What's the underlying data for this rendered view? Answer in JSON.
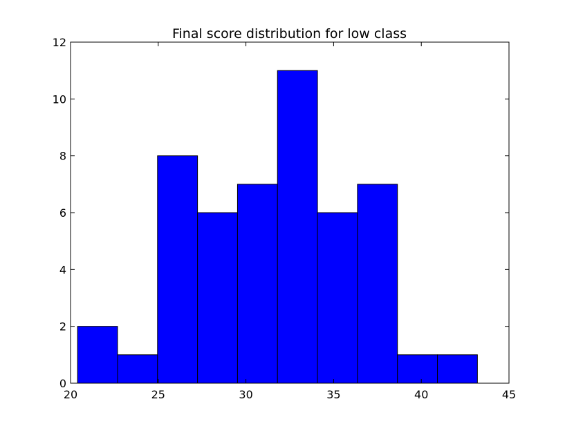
{
  "chart_data": {
    "type": "bar",
    "title": "Final score distribution for low class",
    "xlabel": "",
    "ylabel": "",
    "xlim": [
      20,
      45
    ],
    "ylim": [
      0,
      12
    ],
    "x_ticks": [
      20,
      25,
      30,
      35,
      40,
      45
    ],
    "y_ticks": [
      0,
      2,
      4,
      6,
      8,
      10,
      12
    ],
    "bin_edges": [
      20.4,
      22.68,
      24.96,
      27.24,
      29.52,
      31.8,
      34.08,
      36.36,
      38.64,
      40.92,
      43.2
    ],
    "counts": [
      2,
      1,
      8,
      6,
      7,
      11,
      6,
      7,
      1,
      1
    ],
    "bar_color": "#0000ff",
    "grid": false
  }
}
